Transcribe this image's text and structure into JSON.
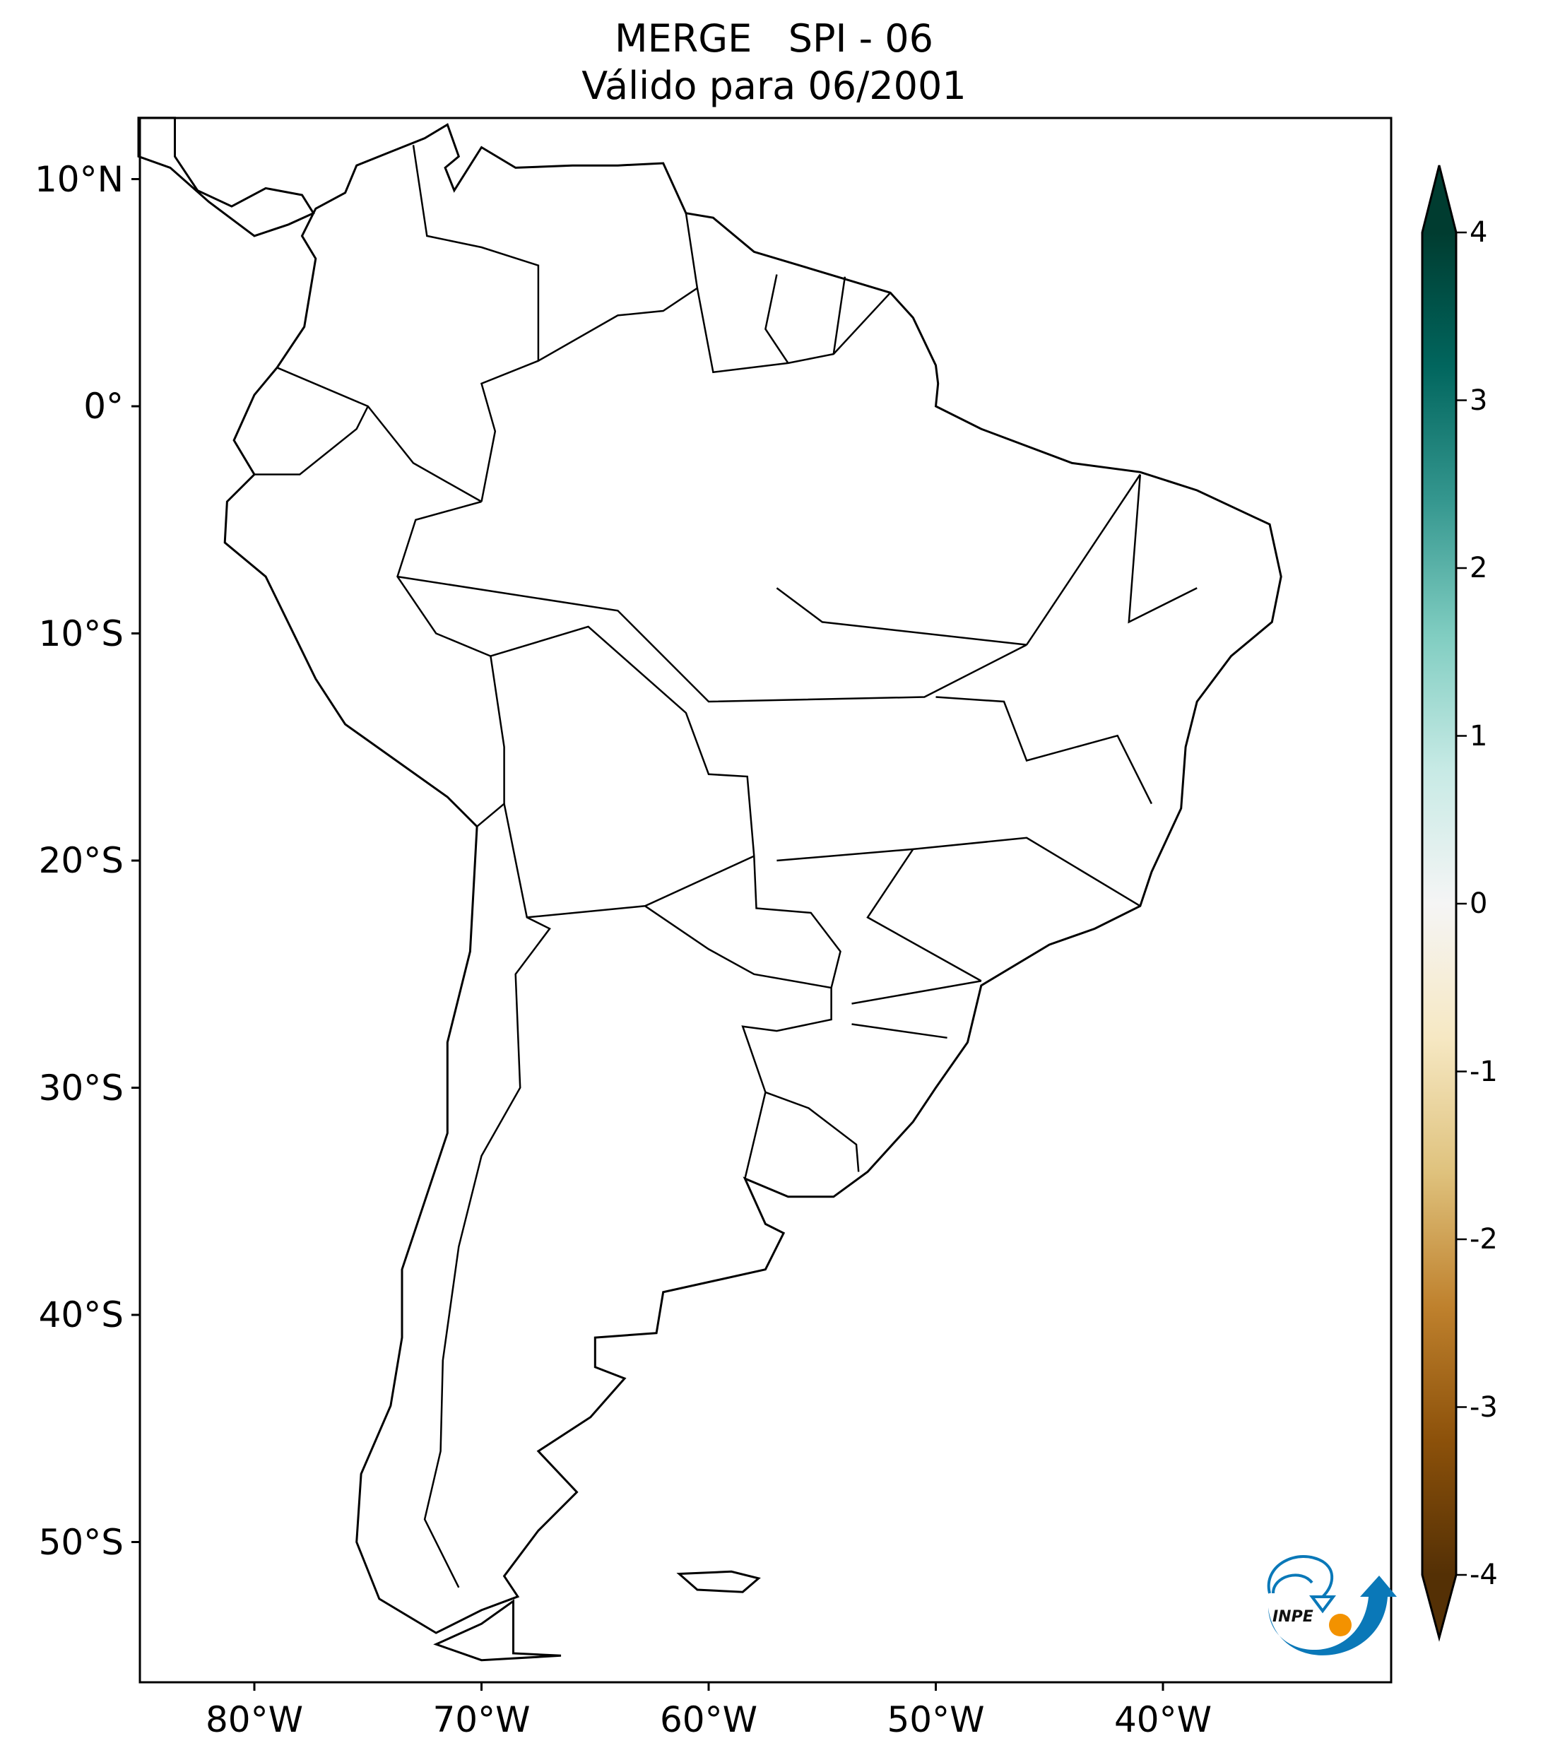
{
  "title": {
    "line1": "MERGE   SPI - 06",
    "line2": "Válido para 06/2001"
  },
  "axes": {
    "lat_ticks": [
      {
        "value": 10,
        "label": "10°N"
      },
      {
        "value": 0,
        "label": "0°"
      },
      {
        "value": -10,
        "label": "10°S"
      },
      {
        "value": -20,
        "label": "20°S"
      },
      {
        "value": -30,
        "label": "30°S"
      },
      {
        "value": -40,
        "label": "40°S"
      },
      {
        "value": -50,
        "label": "50°S"
      }
    ],
    "lon_ticks": [
      {
        "value": -80,
        "label": "80°W"
      },
      {
        "value": -70,
        "label": "70°W"
      },
      {
        "value": -60,
        "label": "60°W"
      },
      {
        "value": -50,
        "label": "50°W"
      },
      {
        "value": -40,
        "label": "40°W"
      }
    ],
    "lon_range": [
      -85,
      -30
    ],
    "lat_range": [
      -56.2,
      12.7
    ]
  },
  "colorbar": {
    "range": [
      -4,
      4
    ],
    "extend": "both",
    "ticks": [
      {
        "value": 4,
        "label": "4"
      },
      {
        "value": 3,
        "label": "3"
      },
      {
        "value": 2,
        "label": "2"
      },
      {
        "value": 1,
        "label": "1"
      },
      {
        "value": 0,
        "label": "0"
      },
      {
        "value": -1,
        "label": "-1"
      },
      {
        "value": -2,
        "label": "-2"
      },
      {
        "value": -3,
        "label": "-3"
      },
      {
        "value": -4,
        "label": "-4"
      }
    ],
    "colors": [
      "#543005",
      "#8c510a",
      "#bf812d",
      "#dfc27d",
      "#f6e8c3",
      "#f5f5f5",
      "#c7eae5",
      "#80cdc1",
      "#35978f",
      "#01665e",
      "#003c30"
    ]
  },
  "logo": {
    "text": "INPE",
    "blue": "#0a78b8",
    "orange": "#f39200"
  }
}
